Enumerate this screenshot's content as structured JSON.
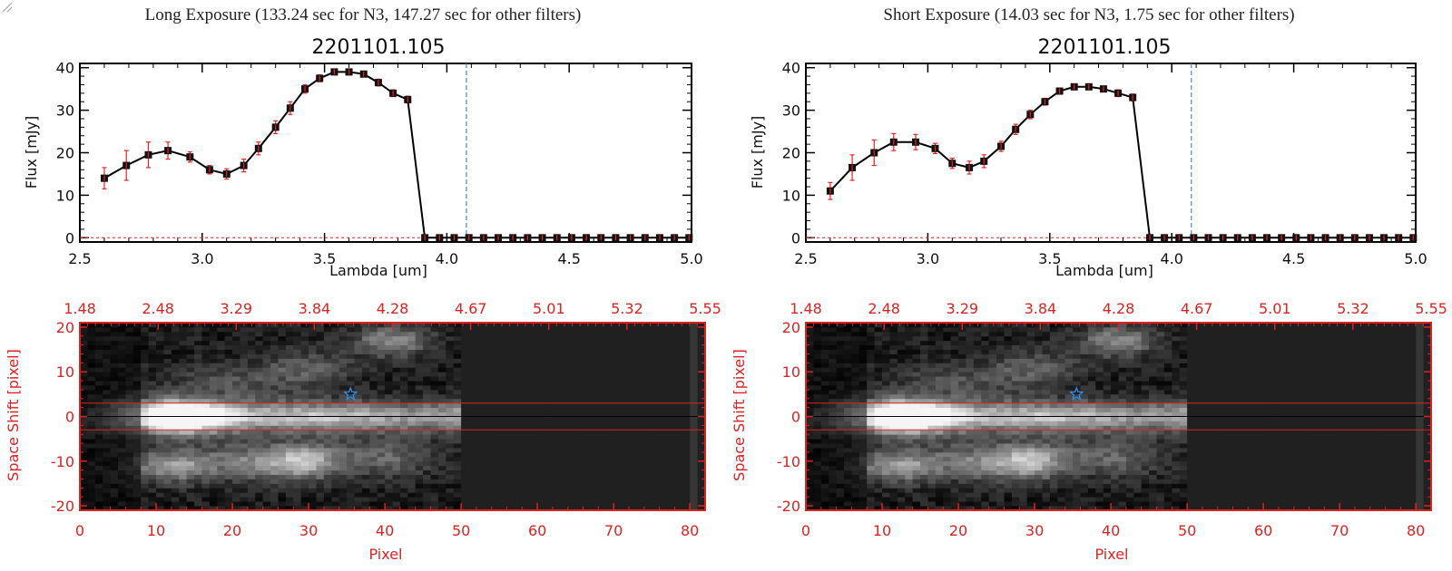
{
  "chart_data": [
    {
      "type": "line",
      "panel": "long",
      "header": "Long Exposure (133.24 sec for N3, 147.27 sec for other filters)",
      "title": "2201101.105",
      "xlabel": "Lambda [um]",
      "ylabel": "Flux [mJy]",
      "xlim": [
        2.5,
        5.0
      ],
      "ylim": [
        -1,
        41
      ],
      "xticks": [
        "2.5",
        "3.0",
        "3.5",
        "4.0",
        "4.5",
        "5.0"
      ],
      "yticks": [
        "0",
        "10",
        "20",
        "30",
        "40"
      ],
      "cutoff_line_x": 4.08,
      "x": [
        2.6,
        2.69,
        2.78,
        2.86,
        2.95,
        3.03,
        3.1,
        3.17,
        3.23,
        3.3,
        3.36,
        3.42,
        3.48,
        3.54,
        3.6,
        3.66,
        3.72,
        3.78,
        3.84,
        3.91,
        3.97,
        4.03,
        4.09,
        4.15,
        4.21,
        4.27,
        4.33,
        4.39,
        4.45,
        4.51,
        4.57,
        4.63,
        4.69,
        4.75,
        4.81,
        4.87,
        4.93,
        4.99
      ],
      "y": [
        14.0,
        17.0,
        19.5,
        20.5,
        19.0,
        16.0,
        15.0,
        17.0,
        21.0,
        26.0,
        30.5,
        35.0,
        37.5,
        39.0,
        39.0,
        38.5,
        36.5,
        34.0,
        32.5,
        0,
        0,
        0,
        0,
        0,
        0,
        0,
        0,
        0,
        0,
        0,
        0,
        0,
        0,
        0,
        0,
        0,
        0,
        0
      ],
      "yerr": [
        2.5,
        3.5,
        3.0,
        2.0,
        1.2,
        1.0,
        1.2,
        1.5,
        1.5,
        1.5,
        1.5,
        1.0,
        0.8,
        0.5,
        0.5,
        0.5,
        0.8,
        0.8,
        0.8,
        0,
        0,
        0,
        0,
        0,
        0,
        0,
        0,
        0,
        0,
        0,
        0,
        0,
        0,
        0,
        0,
        0,
        0,
        0
      ]
    },
    {
      "type": "heatmap",
      "panel": "long",
      "xlabel": "Pixel",
      "ylabel": "Space Shift [pixel]",
      "xlim": [
        0,
        82
      ],
      "ylim": [
        -21,
        21
      ],
      "xticks": [
        "0",
        "10",
        "20",
        "30",
        "40",
        "50",
        "60",
        "70",
        "80"
      ],
      "yticks": [
        "-20",
        "-10",
        "0",
        "10",
        "20"
      ],
      "top_axis_ticks": [
        "1.48",
        "2.48",
        "3.29",
        "3.84",
        "4.28",
        "4.67",
        "5.01",
        "5.32",
        "5.55"
      ],
      "center_band": [
        -3,
        3
      ],
      "star_marker": [
        35.5,
        5
      ],
      "data_columns_end": 50
    },
    {
      "type": "line",
      "panel": "short",
      "header": "Short Exposure (14.03 sec for N3, 1.75 sec for other filters)",
      "title": "2201101.105",
      "xlabel": "Lambda [um]",
      "ylabel": "Flux [mJy]",
      "xlim": [
        2.5,
        5.0
      ],
      "ylim": [
        -1,
        41
      ],
      "xticks": [
        "2.5",
        "3.0",
        "3.5",
        "4.0",
        "4.5",
        "5.0"
      ],
      "yticks": [
        "0",
        "10",
        "20",
        "30",
        "40"
      ],
      "cutoff_line_x": 4.08,
      "x": [
        2.6,
        2.69,
        2.78,
        2.86,
        2.95,
        3.03,
        3.1,
        3.17,
        3.23,
        3.3,
        3.36,
        3.42,
        3.48,
        3.54,
        3.6,
        3.66,
        3.72,
        3.78,
        3.84,
        3.91,
        3.97,
        4.03,
        4.09,
        4.15,
        4.21,
        4.27,
        4.33,
        4.39,
        4.45,
        4.51,
        4.57,
        4.63,
        4.69,
        4.75,
        4.81,
        4.87,
        4.93,
        4.99
      ],
      "y": [
        11.0,
        16.5,
        20.0,
        22.5,
        22.5,
        21.0,
        17.5,
        16.5,
        18.0,
        21.5,
        25.5,
        29.0,
        32.0,
        34.5,
        35.5,
        35.5,
        35.0,
        34.0,
        33.0,
        0,
        0,
        0,
        0,
        0,
        0,
        0,
        0,
        0,
        0,
        0,
        0,
        0,
        0,
        0,
        0,
        0,
        0,
        0
      ],
      "yerr": [
        2.0,
        3.0,
        3.0,
        2.0,
        1.8,
        1.2,
        1.2,
        1.5,
        1.5,
        1.2,
        1.2,
        1.0,
        0.8,
        0.5,
        0.5,
        0.5,
        0.5,
        0.8,
        0.8,
        0,
        0,
        0,
        0,
        0,
        0,
        0,
        0,
        0,
        0,
        0,
        0,
        0,
        0,
        0,
        0,
        0,
        0,
        0
      ]
    },
    {
      "type": "heatmap",
      "panel": "short",
      "xlabel": "Pixel",
      "ylabel": "Space Shift [pixel]",
      "xlim": [
        0,
        82
      ],
      "ylim": [
        -21,
        21
      ],
      "xticks": [
        "0",
        "10",
        "20",
        "30",
        "40",
        "50",
        "60",
        "70",
        "80"
      ],
      "yticks": [
        "-20",
        "-10",
        "0",
        "10",
        "20"
      ],
      "top_axis_ticks": [
        "1.48",
        "2.48",
        "3.29",
        "3.84",
        "4.28",
        "4.67",
        "5.01",
        "5.32",
        "5.55"
      ],
      "center_band": [
        -3,
        3
      ],
      "star_marker": [
        35.5,
        5
      ],
      "data_columns_end": 50
    }
  ],
  "colors": {
    "axis_red": "#dd2222",
    "cutoff_blue": "#3b8fe0",
    "line_black": "#000000",
    "errbar_red": "#ee2222",
    "star_blue": "#2f8fe8"
  }
}
